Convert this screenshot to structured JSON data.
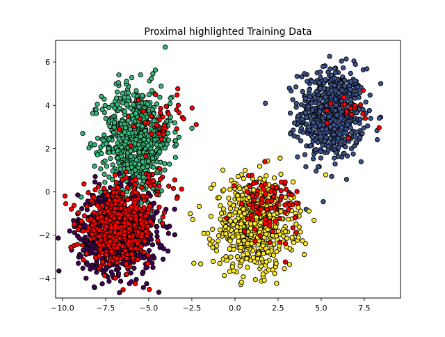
{
  "chart_data": {
    "type": "scatter",
    "title": "Proximal highlighted Training Data",
    "xlabel": "",
    "ylabel": "",
    "xlim": [
      -10.4,
      9.6
    ],
    "ylim": [
      -4.9,
      7.0
    ],
    "xticks": [
      -10.0,
      -7.5,
      -5.0,
      -2.5,
      0.0,
      2.5,
      5.0,
      7.5
    ],
    "xtick_labels": [
      "−10.0",
      "−7.5",
      "−5.0",
      "−2.5",
      "0.0",
      "2.5",
      "5.0",
      "7.5"
    ],
    "yticks": [
      -4,
      -2,
      0,
      2,
      4,
      6
    ],
    "ytick_labels": [
      "−4",
      "−2",
      "0",
      "2",
      "4",
      "6"
    ],
    "grid": false,
    "legend": "none",
    "marker_edge_color": "#000000",
    "clusters": [
      {
        "color": "#3b528b",
        "center": [
          5.6,
          3.6
        ],
        "spread": [
          0.95,
          1.05
        ],
        "approx_points": 650
      },
      {
        "color": "#35b779",
        "center": [
          -5.7,
          2.4
        ],
        "spread": [
          1.0,
          1.25
        ],
        "approx_points": 700
      },
      {
        "color": "#440154",
        "center": [
          -6.8,
          -1.9
        ],
        "spread": [
          1.15,
          0.95
        ],
        "approx_points": 700
      },
      {
        "color": "#fde725",
        "center": [
          1.1,
          -1.5
        ],
        "spread": [
          1.15,
          1.05
        ],
        "approx_points": 650
      }
    ],
    "highlight": {
      "color": "#ff0000",
      "regions": [
        {
          "center": [
            -6.7,
            -1.6
          ],
          "spread": [
            1.05,
            0.85
          ],
          "approx_points": 500
        },
        {
          "center": [
            -4.2,
            3.4
          ],
          "spread": [
            0.75,
            0.55
          ],
          "approx_points": 40
        },
        {
          "center": [
            -4.6,
            0.3
          ],
          "spread": [
            0.65,
            0.45
          ],
          "approx_points": 25
        },
        {
          "center": [
            2.0,
            -0.6
          ],
          "spread": [
            0.9,
            0.75
          ],
          "approx_points": 90
        },
        {
          "center": [
            6.8,
            3.9
          ],
          "spread": [
            0.6,
            0.45
          ],
          "approx_points": 18
        }
      ]
    }
  }
}
